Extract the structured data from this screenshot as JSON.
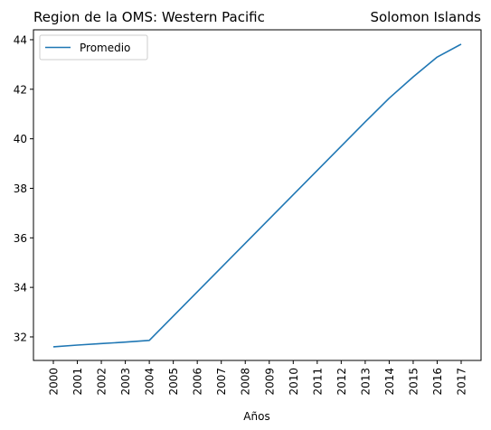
{
  "chart_data": {
    "type": "line",
    "title_left": "Region de la OMS: Western Pacific",
    "title_right": "Solomon Islands",
    "xlabel": "Años",
    "ylabel": "",
    "x": [
      "2000",
      "2001",
      "2002",
      "2003",
      "2004",
      "2005",
      "2006",
      "2007",
      "2008",
      "2009",
      "2010",
      "2011",
      "2012",
      "2013",
      "2014",
      "2015",
      "2016",
      "2017"
    ],
    "yticks": [
      "32",
      "34",
      "36",
      "38",
      "40",
      "42",
      "44"
    ],
    "ylim": [
      31.05,
      44.4
    ],
    "grid": false,
    "legend_position": "upper-left",
    "series": [
      {
        "name": "Promedio",
        "color": "#1f77b4",
        "values": [
          31.6,
          31.67,
          31.73,
          31.79,
          31.86,
          32.84,
          33.82,
          34.8,
          35.78,
          36.76,
          37.74,
          38.72,
          39.7,
          40.68,
          41.64,
          42.5,
          43.3,
          43.82
        ]
      }
    ]
  }
}
